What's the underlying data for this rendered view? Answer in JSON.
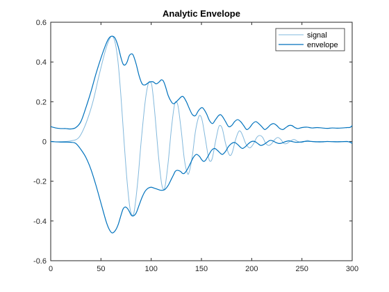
{
  "chart_data": {
    "type": "line",
    "title": "Analytic Envelope",
    "xlabel": "",
    "ylabel": "",
    "xlim": [
      0,
      300
    ],
    "ylim": [
      -0.6,
      0.6
    ],
    "x_ticks": [
      "0",
      "50",
      "100",
      "150",
      "200",
      "250",
      "300"
    ],
    "y_ticks": [
      "0.6",
      "0.4",
      "0.2",
      "0",
      "-0.2",
      "-0.4",
      "-0.6"
    ],
    "grid": false,
    "legend_position": "top-right",
    "series": [
      {
        "name": "signal",
        "color": "#82b8dc",
        "points": [
          [
            0,
            -0.002
          ],
          [
            10,
            -0.001
          ],
          [
            20,
            0.003
          ],
          [
            28,
            0.02
          ],
          [
            35,
            0.09
          ],
          [
            42,
            0.2
          ],
          [
            48,
            0.33
          ],
          [
            54,
            0.45
          ],
          [
            58,
            0.51
          ],
          [
            61,
            0.53
          ],
          [
            64,
            0.5
          ],
          [
            67,
            0.4
          ],
          [
            70,
            0.22
          ],
          [
            73,
            0.0
          ],
          [
            76,
            -0.2
          ],
          [
            79,
            -0.34
          ],
          [
            82,
            -0.37
          ],
          [
            84,
            -0.32
          ],
          [
            87,
            -0.18
          ],
          [
            90,
            0.0
          ],
          [
            94,
            0.2
          ],
          [
            97,
            0.29
          ],
          [
            99,
            0.3
          ],
          [
            101,
            0.27
          ],
          [
            104,
            0.12
          ],
          [
            107,
            -0.06
          ],
          [
            110,
            -0.2
          ],
          [
            112,
            -0.24
          ],
          [
            114,
            -0.22
          ],
          [
            117,
            -0.1
          ],
          [
            120,
            0.06
          ],
          [
            123,
            0.18
          ],
          [
            125,
            0.2
          ],
          [
            127,
            0.17
          ],
          [
            130,
            0.05
          ],
          [
            133,
            -0.09
          ],
          [
            136,
            -0.16
          ],
          [
            138,
            -0.15
          ],
          [
            141,
            -0.07
          ],
          [
            144,
            0.05
          ],
          [
            147,
            0.12
          ],
          [
            149,
            0.13
          ],
          [
            151,
            0.1
          ],
          [
            154,
            0.01
          ],
          [
            157,
            -0.08
          ],
          [
            159,
            -0.1
          ],
          [
            161,
            -0.08
          ],
          [
            164,
            0.0
          ],
          [
            167,
            0.07
          ],
          [
            169,
            0.08
          ],
          [
            171,
            0.06
          ],
          [
            174,
            -0.01
          ],
          [
            177,
            -0.06
          ],
          [
            179,
            -0.07
          ],
          [
            181,
            -0.05
          ],
          [
            184,
            0.01
          ],
          [
            187,
            0.05
          ],
          [
            189,
            0.05
          ],
          [
            191,
            0.03
          ],
          [
            194,
            -0.01
          ],
          [
            197,
            -0.03
          ],
          [
            199,
            -0.03
          ],
          [
            202,
            -0.01
          ],
          [
            205,
            0.02
          ],
          [
            208,
            0.03
          ],
          [
            211,
            0.02
          ],
          [
            214,
            -0.01
          ],
          [
            217,
            -0.02
          ],
          [
            220,
            -0.01
          ],
          [
            223,
            0.01
          ],
          [
            226,
            0.02
          ],
          [
            229,
            0.01
          ],
          [
            232,
            -0.01
          ],
          [
            235,
            -0.01
          ],
          [
            238,
            0.0
          ],
          [
            242,
            0.01
          ],
          [
            246,
            0.0
          ],
          [
            250,
            -0.005
          ],
          [
            255,
            0.005
          ],
          [
            260,
            0.0
          ],
          [
            270,
            0.0
          ],
          [
            280,
            0.0
          ],
          [
            290,
            0.0
          ],
          [
            300,
            -0.003
          ]
        ]
      },
      {
        "name": "envelope",
        "color": "#0072bd",
        "upper": [
          [
            0,
            0.075
          ],
          [
            5,
            0.068
          ],
          [
            10,
            0.065
          ],
          [
            15,
            0.065
          ],
          [
            20,
            0.063
          ],
          [
            25,
            0.07
          ],
          [
            30,
            0.1
          ],
          [
            35,
            0.17
          ],
          [
            40,
            0.25
          ],
          [
            45,
            0.34
          ],
          [
            50,
            0.42
          ],
          [
            55,
            0.49
          ],
          [
            58,
            0.52
          ],
          [
            61,
            0.53
          ],
          [
            64,
            0.52
          ],
          [
            67,
            0.48
          ],
          [
            70,
            0.42
          ],
          [
            72,
            0.39
          ],
          [
            74,
            0.385
          ],
          [
            76,
            0.4
          ],
          [
            78,
            0.43
          ],
          [
            80,
            0.44
          ],
          [
            82,
            0.435
          ],
          [
            85,
            0.39
          ],
          [
            88,
            0.33
          ],
          [
            91,
            0.29
          ],
          [
            94,
            0.285
          ],
          [
            97,
            0.295
          ],
          [
            99,
            0.3
          ],
          [
            102,
            0.3
          ],
          [
            105,
            0.29
          ],
          [
            108,
            0.3
          ],
          [
            110,
            0.31
          ],
          [
            112,
            0.305
          ],
          [
            114,
            0.28
          ],
          [
            117,
            0.23
          ],
          [
            120,
            0.2
          ],
          [
            122,
            0.19
          ],
          [
            124,
            0.195
          ],
          [
            127,
            0.21
          ],
          [
            130,
            0.225
          ],
          [
            132,
            0.225
          ],
          [
            135,
            0.2
          ],
          [
            138,
            0.165
          ],
          [
            141,
            0.135
          ],
          [
            144,
            0.13
          ],
          [
            147,
            0.155
          ],
          [
            150,
            0.17
          ],
          [
            152,
            0.165
          ],
          [
            155,
            0.14
          ],
          [
            158,
            0.105
          ],
          [
            161,
            0.09
          ],
          [
            164,
            0.11
          ],
          [
            167,
            0.13
          ],
          [
            169,
            0.135
          ],
          [
            171,
            0.125
          ],
          [
            174,
            0.1
          ],
          [
            177,
            0.075
          ],
          [
            180,
            0.08
          ],
          [
            183,
            0.1
          ],
          [
            186,
            0.11
          ],
          [
            189,
            0.1
          ],
          [
            192,
            0.08
          ],
          [
            195,
            0.06
          ],
          [
            198,
            0.07
          ],
          [
            201,
            0.09
          ],
          [
            204,
            0.1
          ],
          [
            207,
            0.09
          ],
          [
            210,
            0.075
          ],
          [
            213,
            0.06
          ],
          [
            216,
            0.07
          ],
          [
            219,
            0.085
          ],
          [
            222,
            0.09
          ],
          [
            225,
            0.08
          ],
          [
            228,
            0.065
          ],
          [
            231,
            0.06
          ],
          [
            234,
            0.07
          ],
          [
            237,
            0.08
          ],
          [
            240,
            0.08
          ],
          [
            243,
            0.07
          ],
          [
            246,
            0.065
          ],
          [
            250,
            0.07
          ],
          [
            255,
            0.072
          ],
          [
            260,
            0.068
          ],
          [
            265,
            0.07
          ],
          [
            270,
            0.068
          ],
          [
            275,
            0.066
          ],
          [
            280,
            0.068
          ],
          [
            285,
            0.067
          ],
          [
            290,
            0.068
          ],
          [
            295,
            0.07
          ],
          [
            298,
            0.071
          ],
          [
            300,
            0.08
          ]
        ],
        "lower": [
          [
            0,
            0.0
          ],
          [
            5,
            -0.002
          ],
          [
            10,
            -0.003
          ],
          [
            15,
            -0.003
          ],
          [
            20,
            -0.004
          ],
          [
            25,
            -0.01
          ],
          [
            30,
            -0.04
          ],
          [
            35,
            -0.08
          ],
          [
            40,
            -0.14
          ],
          [
            45,
            -0.22
          ],
          [
            50,
            -0.31
          ],
          [
            55,
            -0.4
          ],
          [
            58,
            -0.44
          ],
          [
            61,
            -0.46
          ],
          [
            64,
            -0.45
          ],
          [
            67,
            -0.42
          ],
          [
            70,
            -0.37
          ],
          [
            72,
            -0.34
          ],
          [
            74,
            -0.33
          ],
          [
            76,
            -0.335
          ],
          [
            78,
            -0.35
          ],
          [
            80,
            -0.37
          ],
          [
            82,
            -0.375
          ],
          [
            85,
            -0.36
          ],
          [
            88,
            -0.32
          ],
          [
            91,
            -0.28
          ],
          [
            94,
            -0.25
          ],
          [
            97,
            -0.235
          ],
          [
            100,
            -0.23
          ],
          [
            103,
            -0.235
          ],
          [
            106,
            -0.24
          ],
          [
            109,
            -0.245
          ],
          [
            112,
            -0.245
          ],
          [
            114,
            -0.24
          ],
          [
            117,
            -0.22
          ],
          [
            120,
            -0.19
          ],
          [
            122,
            -0.17
          ],
          [
            124,
            -0.15
          ],
          [
            126,
            -0.145
          ],
          [
            129,
            -0.15
          ],
          [
            131,
            -0.16
          ],
          [
            133,
            -0.16
          ],
          [
            136,
            -0.14
          ],
          [
            139,
            -0.11
          ],
          [
            142,
            -0.08
          ],
          [
            145,
            -0.065
          ],
          [
            148,
            -0.075
          ],
          [
            150,
            -0.09
          ],
          [
            152,
            -0.1
          ],
          [
            154,
            -0.095
          ],
          [
            157,
            -0.07
          ],
          [
            160,
            -0.045
          ],
          [
            163,
            -0.035
          ],
          [
            166,
            -0.045
          ],
          [
            169,
            -0.06
          ],
          [
            171,
            -0.065
          ],
          [
            174,
            -0.05
          ],
          [
            177,
            -0.025
          ],
          [
            180,
            -0.01
          ],
          [
            183,
            -0.005
          ],
          [
            186,
            -0.015
          ],
          [
            189,
            -0.03
          ],
          [
            191,
            -0.035
          ],
          [
            194,
            -0.025
          ],
          [
            197,
            -0.01
          ],
          [
            200,
            0.0
          ],
          [
            203,
            0.0
          ],
          [
            206,
            -0.01
          ],
          [
            209,
            -0.02
          ],
          [
            212,
            -0.015
          ],
          [
            215,
            -0.005
          ],
          [
            218,
            0.005
          ],
          [
            221,
            0.003
          ],
          [
            224,
            -0.005
          ],
          [
            227,
            -0.01
          ],
          [
            230,
            -0.008
          ],
          [
            234,
            0.0
          ],
          [
            237,
            0.003
          ],
          [
            240,
            0.0
          ],
          [
            244,
            -0.004
          ],
          [
            248,
            -0.003
          ],
          [
            252,
            0.0
          ],
          [
            256,
            0.001
          ],
          [
            260,
            0.0
          ],
          [
            265,
            -0.002
          ],
          [
            270,
            -0.002
          ],
          [
            275,
            0.0
          ],
          [
            280,
            -0.001
          ],
          [
            285,
            -0.002
          ],
          [
            290,
            -0.001
          ],
          [
            295,
            0.0
          ],
          [
            298,
            -0.004
          ],
          [
            300,
            -0.01
          ]
        ]
      }
    ]
  }
}
